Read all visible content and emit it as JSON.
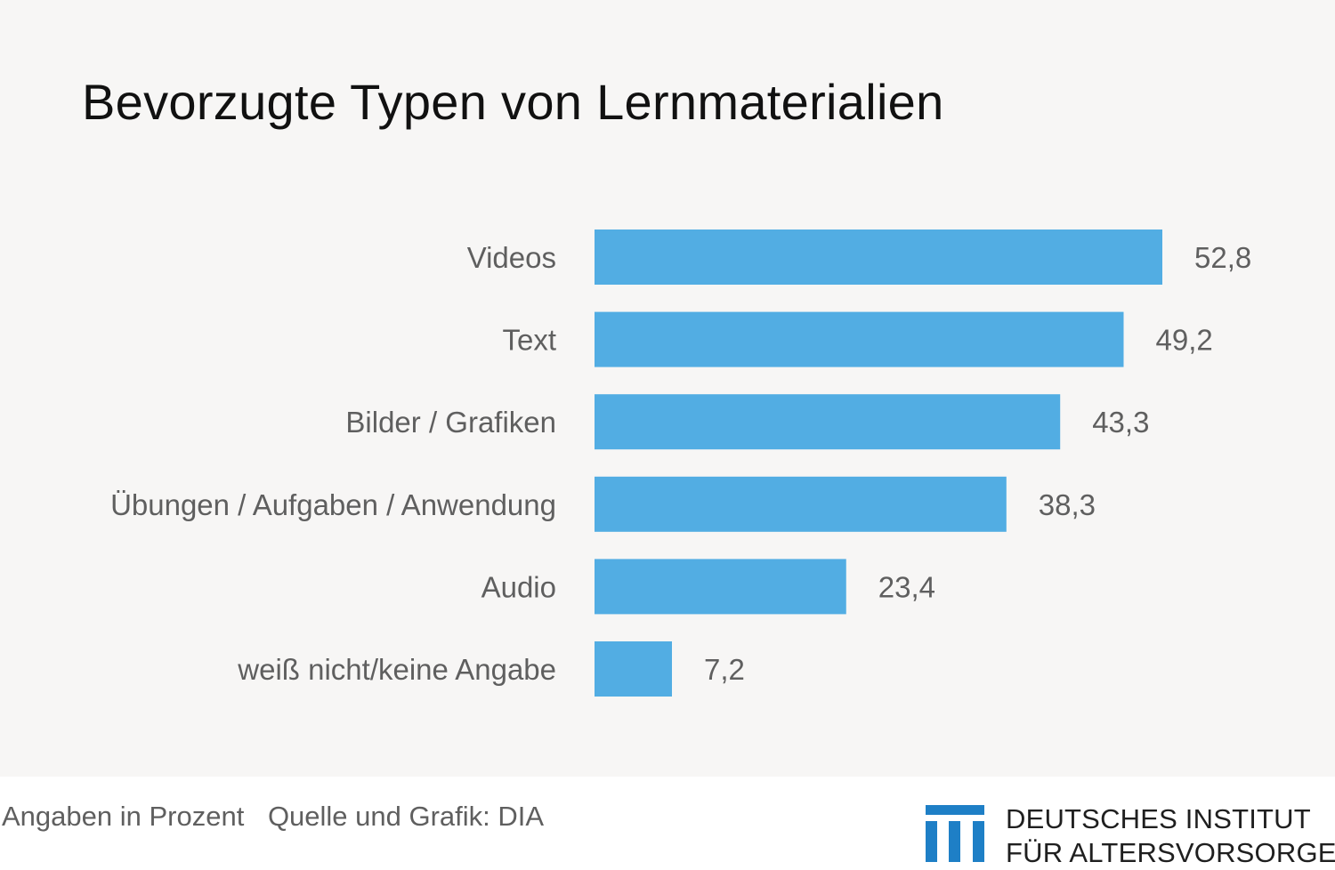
{
  "title": "Bevorzugte Typen von Lernmaterialien",
  "colors": {
    "bar": "#52ade3",
    "background": "#f7f6f5",
    "logo": "#1e7fc6"
  },
  "chart_data": {
    "type": "bar",
    "orientation": "horizontal",
    "title": "Bevorzugte Typen von Lernmaterialien",
    "categories": [
      "Videos",
      "Text",
      "Bilder / Grafiken",
      "Übungen / Aufgaben / Anwendung",
      "Audio",
      "weiß nicht/keine Angabe"
    ],
    "values": [
      52.8,
      49.2,
      43.3,
      38.3,
      23.4,
      7.2
    ],
    "value_labels": [
      "52,8",
      "49,2",
      "43,3",
      "38,3",
      "23,4",
      "7,2"
    ],
    "xlim": [
      0,
      52.8
    ],
    "grid": false,
    "legend": "none"
  },
  "footer": {
    "unit_note": "Angaben in Prozent",
    "source": "Quelle und Grafik: DIA"
  },
  "logo": {
    "icon": "dia-logo-icon",
    "line1": "DEUTSCHES INSTITUT",
    "line2": "FÜR ALTERSVORSORGE"
  }
}
